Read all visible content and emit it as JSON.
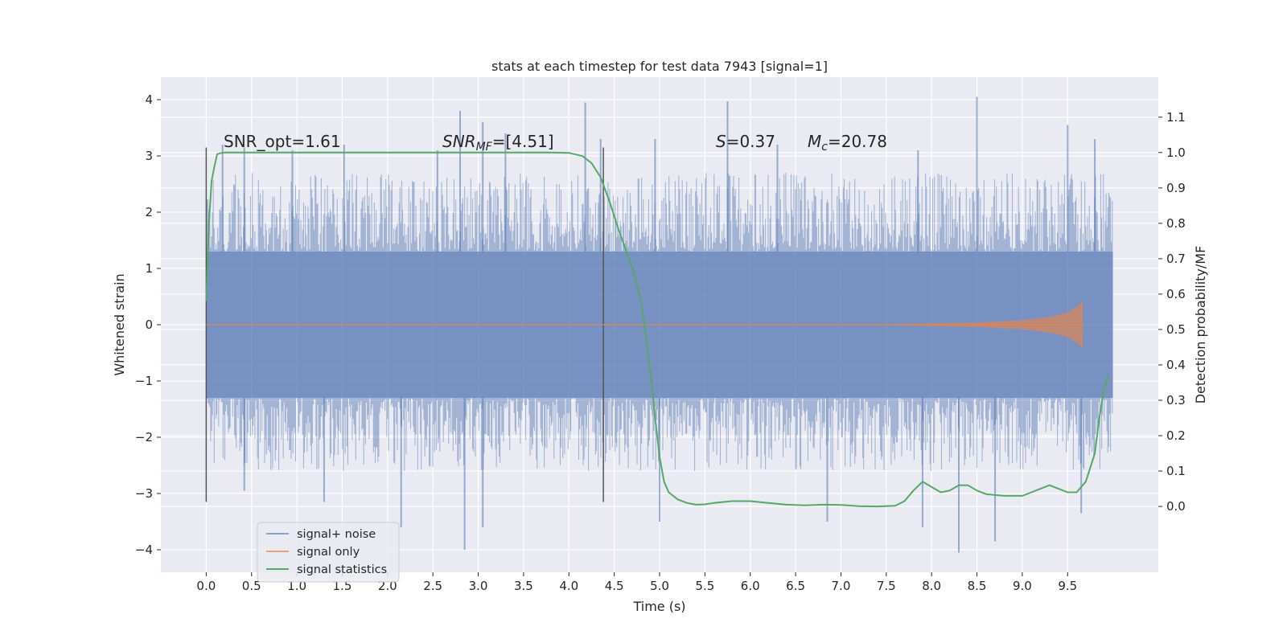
{
  "chart_data": {
    "type": "line",
    "title": "stats at each timestep for test data 7943 [signal=1]",
    "xlabel": "Time (s)",
    "ylabel": "Whitened strain",
    "y2label": "Detection probability/MF",
    "xlim": [
      -0.5,
      10.5
    ],
    "ylim": [
      -4.4,
      4.4
    ],
    "y2lim": [
      -0.186,
      1.213
    ],
    "xticks": [
      "0.0",
      "0.5",
      "1.0",
      "1.5",
      "2.0",
      "2.5",
      "3.0",
      "3.5",
      "4.0",
      "4.5",
      "5.0",
      "5.5",
      "6.0",
      "6.5",
      "7.0",
      "7.5",
      "8.0",
      "8.5",
      "9.0",
      "9.5"
    ],
    "yticks": [
      "4",
      "3",
      "2",
      "1",
      "0",
      "−1",
      "−2",
      "−3",
      "−4"
    ],
    "y2ticks": [
      "1.1",
      "1.0",
      "0.9",
      "0.8",
      "0.7",
      "0.6",
      "0.5",
      "0.4",
      "0.3",
      "0.2",
      "0.1",
      "0.0"
    ],
    "grid": true,
    "legend_position": "lower-left",
    "colors": {
      "signal_noise": "#4c72b0",
      "signal_only": "#dd8452",
      "statistics": "#55a868",
      "background": "#eaeaf2",
      "marker": "#555555"
    },
    "annotations": {
      "snr_opt": "SNR_opt=1.61",
      "snr_mf": "=[4.51]",
      "spin": "=0.37",
      "chirp_mass": "=20.78"
    },
    "markers_x": [
      0.0,
      4.38
    ],
    "series": [
      {
        "name": "signal+ noise",
        "type": "noise-band",
        "x_range": [
          0.0,
          10.0
        ],
        "dense_band": [
          -1.3,
          1.3
        ],
        "typical_envelope": [
          -2.2,
          2.3
        ],
        "peak_spikes": [
          {
            "x": 0.18,
            "y": 3.2
          },
          {
            "x": 0.42,
            "y": 3.15
          },
          {
            "x": 0.95,
            "y": 3.1
          },
          {
            "x": 1.52,
            "y": 3.2
          },
          {
            "x": 2.55,
            "y": 3.1
          },
          {
            "x": 2.8,
            "y": 3.8
          },
          {
            "x": 3.05,
            "y": 3.6
          },
          {
            "x": 3.3,
            "y": 3.4
          },
          {
            "x": 4.18,
            "y": 3.95
          },
          {
            "x": 4.35,
            "y": 3.3
          },
          {
            "x": 4.95,
            "y": 3.3
          },
          {
            "x": 5.75,
            "y": 3.97
          },
          {
            "x": 6.3,
            "y": 3.2
          },
          {
            "x": 7.85,
            "y": 3.1
          },
          {
            "x": 8.5,
            "y": 4.05
          },
          {
            "x": 9.5,
            "y": 3.55
          },
          {
            "x": 9.8,
            "y": 3.3
          },
          {
            "x": 0.42,
            "y": -2.95
          },
          {
            "x": 1.3,
            "y": -3.15
          },
          {
            "x": 2.15,
            "y": -3.6
          },
          {
            "x": 2.85,
            "y": -4.0
          },
          {
            "x": 3.05,
            "y": -3.6
          },
          {
            "x": 5.0,
            "y": -3.5
          },
          {
            "x": 6.85,
            "y": -3.5
          },
          {
            "x": 7.9,
            "y": -3.6
          },
          {
            "x": 8.3,
            "y": -4.05
          },
          {
            "x": 8.7,
            "y": -3.85
          },
          {
            "x": 9.65,
            "y": -3.35
          }
        ]
      },
      {
        "name": "signal only",
        "x": [
          0.0,
          7.5,
          8.5,
          9.0,
          9.3,
          9.5,
          9.6,
          9.67
        ],
        "amplitude": [
          0.0,
          0.01,
          0.04,
          0.08,
          0.14,
          0.22,
          0.32,
          0.42
        ]
      },
      {
        "name": "signal statistics",
        "x": [
          0.0,
          0.03,
          0.06,
          0.09,
          0.12,
          0.15,
          0.2,
          0.3,
          0.5,
          1.0,
          2.0,
          3.0,
          3.8,
          4.0,
          4.15,
          4.25,
          4.35,
          4.45,
          4.55,
          4.65,
          4.72,
          4.8,
          4.85,
          4.9,
          4.95,
          5.0,
          5.05,
          5.1,
          5.2,
          5.3,
          5.4,
          5.5,
          5.6,
          5.8,
          6.0,
          6.2,
          6.4,
          6.6,
          6.8,
          7.0,
          7.2,
          7.4,
          7.6,
          7.7,
          7.8,
          7.9,
          8.0,
          8.1,
          8.2,
          8.3,
          8.4,
          8.5,
          8.6,
          8.8,
          9.0,
          9.1,
          9.2,
          9.3,
          9.4,
          9.5,
          9.6,
          9.7,
          9.8,
          9.85,
          9.9,
          9.95
        ],
        "y": [
          0.58,
          0.8,
          0.92,
          0.96,
          0.995,
          0.998,
          1.0,
          1.0,
          1.0,
          1.0,
          1.0,
          1.0,
          1.0,
          0.999,
          0.99,
          0.97,
          0.93,
          0.86,
          0.78,
          0.71,
          0.66,
          0.57,
          0.48,
          0.38,
          0.25,
          0.14,
          0.07,
          0.04,
          0.02,
          0.01,
          0.005,
          0.006,
          0.01,
          0.015,
          0.015,
          0.01,
          0.005,
          0.003,
          0.005,
          0.004,
          0.001,
          0.0,
          0.002,
          0.015,
          0.045,
          0.07,
          0.055,
          0.04,
          0.045,
          0.06,
          0.06,
          0.045,
          0.035,
          0.03,
          0.03,
          0.04,
          0.05,
          0.06,
          0.05,
          0.04,
          0.04,
          0.07,
          0.15,
          0.25,
          0.33,
          0.37
        ]
      }
    ]
  }
}
